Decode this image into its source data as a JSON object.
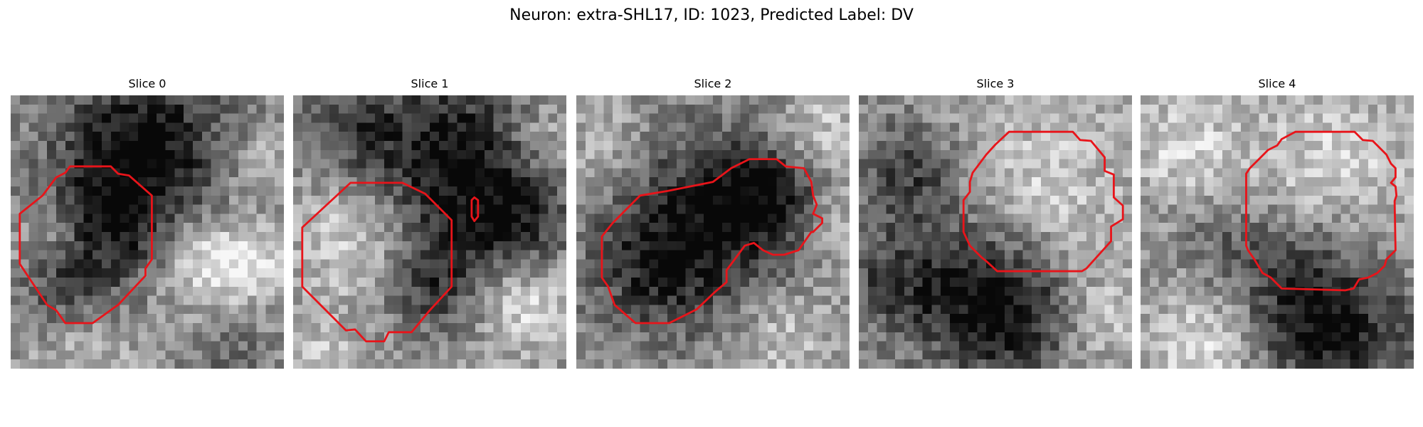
{
  "figure": {
    "title": "Neuron: extra-SHL17, ID: 1023, Predicted Label: DV"
  },
  "colors": {
    "contour": "#e8141a",
    "background": "#ffffff"
  },
  "slices": [
    {
      "title": "Slice 0"
    },
    {
      "title": "Slice 1"
    },
    {
      "title": "Slice 2"
    },
    {
      "title": "Slice 3"
    },
    {
      "title": "Slice 4"
    }
  ]
}
